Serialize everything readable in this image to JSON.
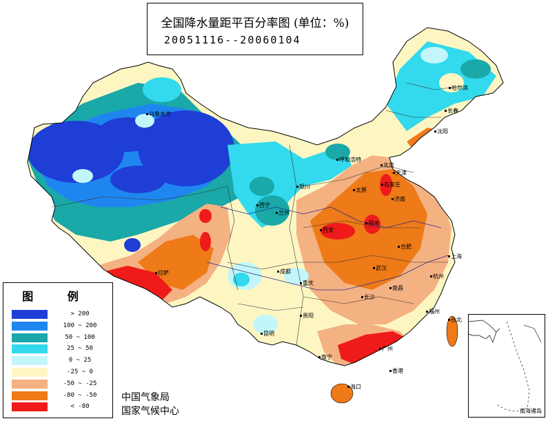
{
  "title": "全国降水量距平百分率图 (单位：%)",
  "date_range": "20051116--20060104",
  "legend": {
    "title": "图 例",
    "items": [
      {
        "label": "> 200",
        "color": "#1e3ed6"
      },
      {
        "label": "100 ~ 200",
        "color": "#1f86f0"
      },
      {
        "label": "50 ~ 100",
        "color": "#1aa8a8"
      },
      {
        "label": "25 ~ 50",
        "color": "#33d9ec"
      },
      {
        "label": "0 ~ 25",
        "color": "#c2f6fa"
      },
      {
        "label": "-25 ~ 0",
        "color": "#fdf6c3"
      },
      {
        "label": "-50 ~ -25",
        "color": "#f4b182"
      },
      {
        "label": "-80 ~ -50",
        "color": "#ee7a18"
      },
      {
        "label": "< -80",
        "color": "#ef1b1b"
      }
    ]
  },
  "credits": {
    "line1": "中国气象局",
    "line2": "国家气候中心"
  },
  "inset_label": "南海诸岛",
  "cities": [
    {
      "name": "乌鲁木齐"
    },
    {
      "name": "哈尔滨"
    },
    {
      "name": "长春"
    },
    {
      "name": "沈阳"
    },
    {
      "name": "呼和浩特"
    },
    {
      "name": "北京"
    },
    {
      "name": "天津"
    },
    {
      "name": "石家庄"
    },
    {
      "name": "太原"
    },
    {
      "name": "济南"
    },
    {
      "name": "银川"
    },
    {
      "name": "西宁"
    },
    {
      "name": "兰州"
    },
    {
      "name": "西安"
    },
    {
      "name": "郑州"
    },
    {
      "name": "合肥"
    },
    {
      "name": "上海"
    },
    {
      "name": "武汉"
    },
    {
      "name": "杭州"
    },
    {
      "name": "长沙"
    },
    {
      "name": "南昌"
    },
    {
      "name": "福州"
    },
    {
      "name": "台北"
    },
    {
      "name": "成都"
    },
    {
      "name": "重庆"
    },
    {
      "name": "贵阳"
    },
    {
      "name": "昆明"
    },
    {
      "name": "南宁"
    },
    {
      "name": "广州"
    },
    {
      "name": "香港"
    },
    {
      "name": "海口"
    },
    {
      "name": "拉萨"
    }
  ]
}
